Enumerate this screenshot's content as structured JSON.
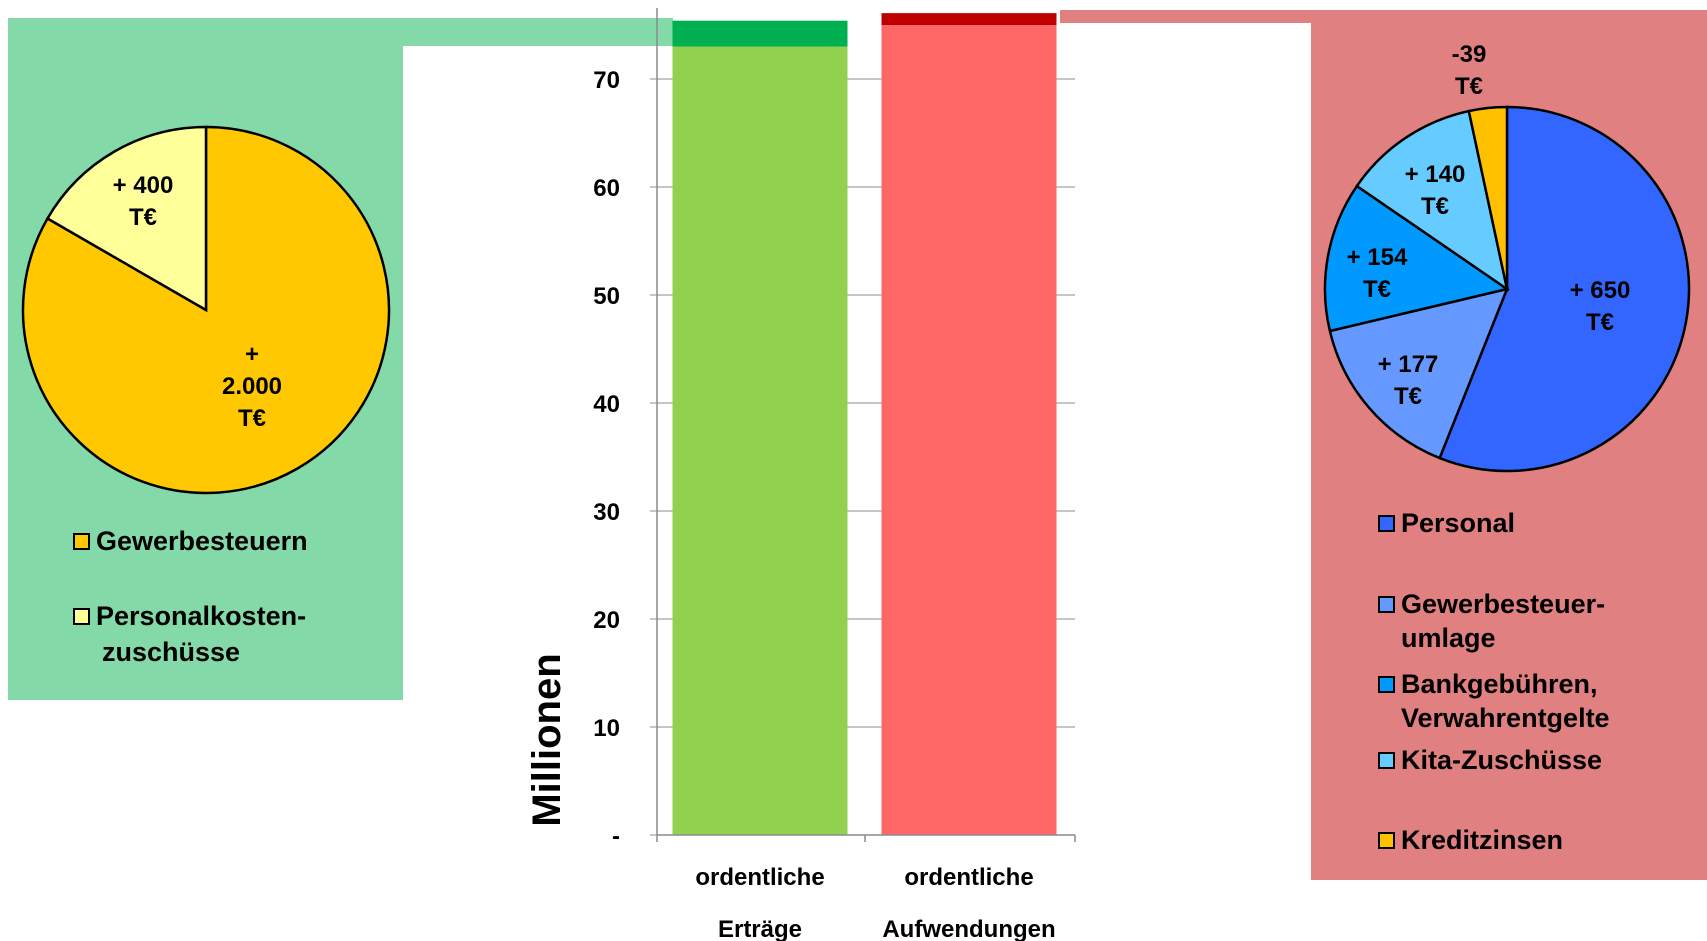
{
  "chart_data": [
    {
      "type": "pie",
      "slices": [
        {
          "label": "Gewerbesteuern",
          "value": 2000,
          "data_label": [
            "+",
            "2.000",
            "T€"
          ],
          "color": "#FFC800"
        },
        {
          "label": "Personalkosten-zuschüsse",
          "value": 400,
          "data_label": [
            "+ 400",
            "T€"
          ],
          "color": "#FFFF99"
        }
      ],
      "legend": [
        {
          "lines": [
            "Gewerbesteuern"
          ],
          "color": "#FFC800"
        },
        {
          "lines": [
            "Personalkosten-",
            "zuschüsse"
          ],
          "color": "#FFFF99"
        }
      ],
      "legend_position": "bottom",
      "panel_color": "#84D9A8"
    },
    {
      "type": "bar",
      "stacked": true,
      "categories": [
        {
          "lines": [
            "ordentliche",
            "Erträge"
          ]
        },
        {
          "lines": [
            "ordentliche",
            "Aufwendungen"
          ]
        }
      ],
      "series": [
        {
          "values": [
            73.0,
            75.0
          ],
          "colors": [
            "#92D050",
            "#FF6666"
          ]
        },
        {
          "values": [
            2.4,
            1.1
          ],
          "colors": [
            "#00B050",
            "#C00000"
          ]
        }
      ],
      "ylabel": "Millionen",
      "ylim": [
        0,
        75
      ],
      "yticks": [
        0,
        10,
        20,
        30,
        40,
        50,
        60,
        70
      ],
      "ytick_labels": [
        "-",
        "10",
        "20",
        "30",
        "40",
        "50",
        "60",
        "70"
      ],
      "grid": true
    },
    {
      "type": "pie",
      "slices": [
        {
          "label": "Personal",
          "value": 650,
          "data_label": [
            "+ 650",
            "T€"
          ],
          "color": "#3366FF"
        },
        {
          "label": "Gewerbesteuer-umlage",
          "value": 177,
          "data_label": [
            "+ 177",
            "T€"
          ],
          "color": "#6699FF"
        },
        {
          "label": "Bankgebühren, Verwahrentgelte",
          "value": 154,
          "data_label": [
            "+ 154",
            "T€"
          ],
          "color": "#0099FF"
        },
        {
          "label": "Kita-Zuschüsse",
          "value": 140,
          "data_label": [
            "+ 140",
            "T€"
          ],
          "color": "#66CCFF"
        },
        {
          "label": "Kreditzinsen",
          "value": 39,
          "data_label": [
            "-39",
            "T€"
          ],
          "color": "#FFC000"
        }
      ],
      "legend": [
        {
          "lines": [
            "Personal"
          ],
          "color": "#3366FF"
        },
        {
          "lines": [
            "Gewerbesteuer-",
            "umlage"
          ],
          "color": "#6699FF"
        },
        {
          "lines": [
            "Bankgebühren,",
            "Verwahrentgelte"
          ],
          "color": "#0099FF"
        },
        {
          "lines": [
            "Kita-Zuschüsse"
          ],
          "color": "#66CCFF"
        },
        {
          "lines": [
            "Kreditzinsen"
          ],
          "color": "#FFC000"
        }
      ],
      "legend_position": "bottom",
      "panel_color": "#E08080"
    }
  ]
}
